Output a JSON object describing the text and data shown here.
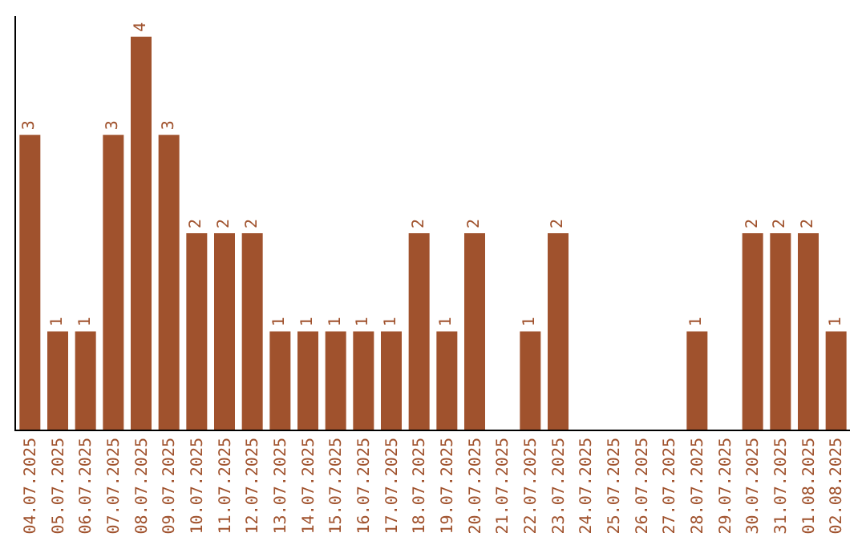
{
  "chart_data": {
    "type": "bar",
    "categories": [
      "04.07.2025",
      "05.07.2025",
      "06.07.2025",
      "07.07.2025",
      "08.07.2025",
      "09.07.2025",
      "10.07.2025",
      "11.07.2025",
      "12.07.2025",
      "13.07.2025",
      "14.07.2025",
      "15.07.2025",
      "16.07.2025",
      "17.07.2025",
      "18.07.2025",
      "19.07.2025",
      "20.07.2025",
      "21.07.2025",
      "22.07.2025",
      "23.07.2025",
      "24.07.2025",
      "25.07.2025",
      "26.07.2025",
      "27.07.2025",
      "28.07.2025",
      "29.07.2025",
      "30.07.2025",
      "31.07.2025",
      "01.08.2025",
      "02.08.2025"
    ],
    "values": [
      3,
      1,
      1,
      3,
      4,
      3,
      2,
      2,
      2,
      1,
      1,
      1,
      1,
      1,
      2,
      1,
      2,
      0,
      1,
      2,
      0,
      0,
      0,
      0,
      1,
      0,
      2,
      2,
      2,
      1
    ],
    "value_labels": [
      "3",
      "1",
      "1",
      "3",
      "4",
      "3",
      "2",
      "2",
      "2",
      "1",
      "1",
      "1",
      "1",
      "1",
      "2",
      "1",
      "2",
      null,
      "1",
      "2",
      null,
      null,
      null,
      null,
      "1",
      null,
      "2",
      "2",
      "2",
      "1"
    ],
    "color": "#a0522d",
    "tick_labels": "x"
  }
}
